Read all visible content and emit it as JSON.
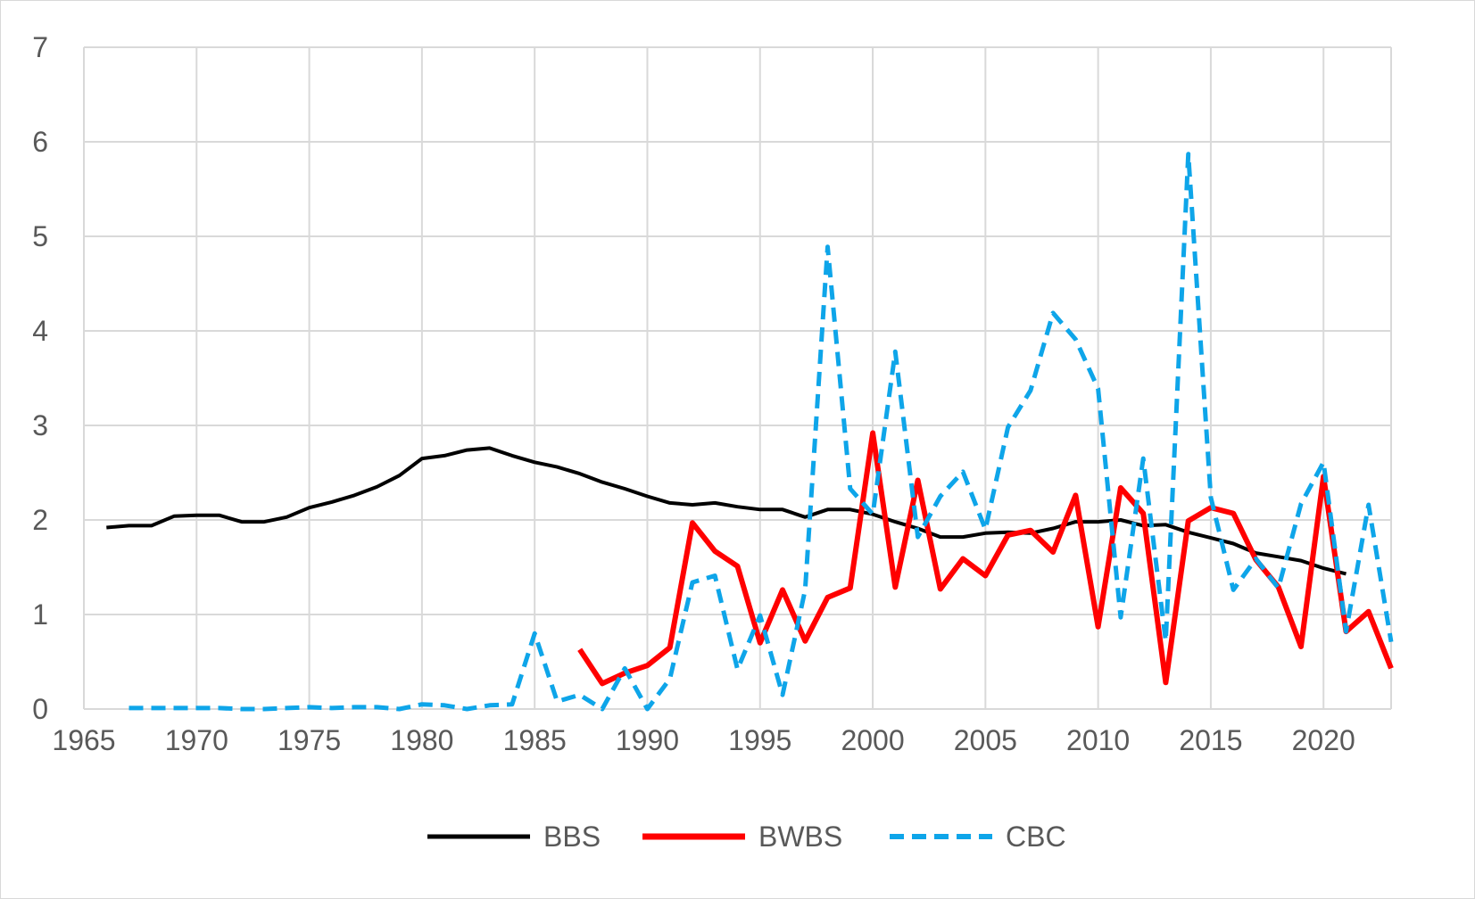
{
  "chart_data": {
    "type": "line",
    "title": "",
    "xlabel": "",
    "ylabel": "",
    "xlim": [
      1965,
      2023
    ],
    "ylim": [
      0,
      7
    ],
    "x_ticks": [
      1965,
      1970,
      1975,
      1980,
      1985,
      1990,
      1995,
      2000,
      2005,
      2010,
      2015,
      2020
    ],
    "y_ticks": [
      0,
      1,
      2,
      3,
      4,
      5,
      6,
      7
    ],
    "grid": true,
    "legend_position": "bottom",
    "series": [
      {
        "name": "BBS",
        "color": "#000000",
        "style": "solid",
        "x": [
          1966,
          1967,
          1968,
          1969,
          1970,
          1971,
          1972,
          1973,
          1974,
          1975,
          1976,
          1977,
          1978,
          1979,
          1980,
          1981,
          1982,
          1983,
          1984,
          1985,
          1986,
          1987,
          1988,
          1989,
          1990,
          1991,
          1992,
          1993,
          1994,
          1995,
          1996,
          1997,
          1998,
          1999,
          2000,
          2001,
          2002,
          2003,
          2004,
          2005,
          2006,
          2007,
          2008,
          2009,
          2010,
          2011,
          2012,
          2013,
          2014,
          2015,
          2016,
          2017,
          2018,
          2019,
          2020,
          2021
        ],
        "values": [
          1.92,
          1.94,
          1.94,
          2.04,
          2.05,
          2.05,
          1.98,
          1.98,
          2.03,
          2.13,
          2.19,
          2.26,
          2.35,
          2.47,
          2.65,
          2.68,
          2.74,
          2.76,
          2.68,
          2.61,
          2.56,
          2.49,
          2.4,
          2.33,
          2.25,
          2.18,
          2.16,
          2.18,
          2.14,
          2.11,
          2.11,
          2.03,
          2.11,
          2.11,
          2.06,
          1.98,
          1.91,
          1.82,
          1.82,
          1.86,
          1.87,
          1.86,
          1.91,
          1.98,
          1.98,
          2.0,
          1.94,
          1.95,
          1.87,
          1.81,
          1.75,
          1.65,
          1.61,
          1.57,
          1.49,
          1.43
        ]
      },
      {
        "name": "BWBS",
        "color": "#ff0000",
        "style": "solid",
        "x": [
          1987,
          1988,
          1989,
          1990,
          1991,
          1992,
          1993,
          1994,
          1995,
          1996,
          1997,
          1998,
          1999,
          2000,
          2001,
          2002,
          2003,
          2004,
          2005,
          2006,
          2007,
          2008,
          2009,
          2010,
          2011,
          2012,
          2013,
          2014,
          2015,
          2016,
          2017,
          2018,
          2019,
          2020,
          2021,
          2022,
          2023
        ],
        "values": [
          0.63,
          0.27,
          0.38,
          0.46,
          0.65,
          1.97,
          1.67,
          1.51,
          0.7,
          1.26,
          0.72,
          1.18,
          1.28,
          2.92,
          1.29,
          2.42,
          1.27,
          1.59,
          1.41,
          1.84,
          1.89,
          1.66,
          2.26,
          0.87,
          2.34,
          2.07,
          0.28,
          1.99,
          2.13,
          2.07,
          1.58,
          1.29,
          0.66,
          2.46,
          0.82,
          1.03,
          0.43
        ]
      },
      {
        "name": "CBC",
        "color": "#0ea5e9",
        "style": "dashed",
        "x": [
          1967,
          1968,
          1969,
          1970,
          1971,
          1972,
          1973,
          1974,
          1975,
          1976,
          1977,
          1978,
          1979,
          1980,
          1981,
          1982,
          1983,
          1984,
          1985,
          1986,
          1987,
          1988,
          1989,
          1990,
          1991,
          1992,
          1993,
          1994,
          1995,
          1996,
          1997,
          1998,
          1999,
          2000,
          2001,
          2002,
          2003,
          2004,
          2005,
          2006,
          2007,
          2008,
          2009,
          2010,
          2011,
          2012,
          2013,
          2014,
          2015,
          2016,
          2017,
          2018,
          2019,
          2020,
          2021,
          2022,
          2023
        ],
        "values": [
          0.01,
          0.01,
          0.01,
          0.01,
          0.01,
          0.0,
          0.0,
          0.01,
          0.02,
          0.01,
          0.02,
          0.02,
          0.0,
          0.05,
          0.04,
          0.0,
          0.04,
          0.05,
          0.8,
          0.08,
          0.15,
          0.0,
          0.43,
          0.0,
          0.32,
          1.34,
          1.41,
          0.42,
          0.99,
          0.15,
          1.26,
          4.89,
          2.33,
          2.06,
          3.78,
          1.82,
          2.25,
          2.51,
          1.9,
          2.98,
          3.37,
          4.19,
          3.91,
          3.39,
          0.97,
          2.65,
          0.72,
          5.87,
          2.24,
          1.26,
          1.59,
          1.28,
          2.17,
          2.61,
          0.82,
          2.16,
          0.71
        ]
      }
    ]
  }
}
